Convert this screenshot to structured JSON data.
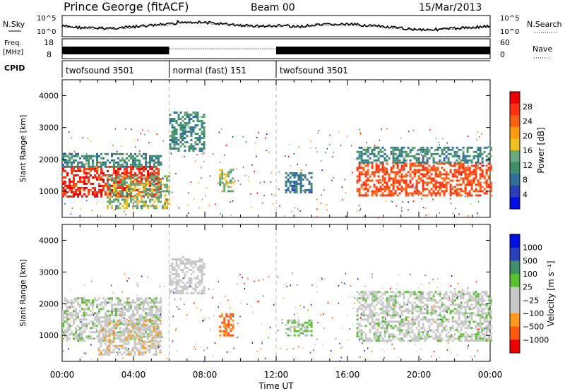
{
  "header": {
    "station": "Prince George (fitACF)",
    "beam": "Beam 00",
    "date": "15/Mar/2013"
  },
  "panels": {
    "nsky_label": "N.Sky",
    "nsearch_label": "N.Search",
    "freq_label_1": "Freq.",
    "freq_label_2": "[MHz]",
    "nave_label": "Nave",
    "cpid_label": "CPID",
    "nsky_ticks": [
      "10^5",
      "10^0"
    ],
    "nsearch_ticks": [
      "10^5",
      "10^0"
    ],
    "freq_ticks": [
      "18",
      "8"
    ],
    "nave_ticks": [
      "60",
      "0"
    ]
  },
  "cpid_segments": [
    {
      "label": "twofsound 3501",
      "start": 0,
      "end": 6
    },
    {
      "label": "normal (fast) 151",
      "start": 6,
      "end": 12
    },
    {
      "label": "twofsound 3501",
      "start": 12,
      "end": 24
    }
  ],
  "colors": {
    "power": [
      "#0010e0",
      "#2a3fb8",
      "#2f6f9a",
      "#3f8f6a",
      "#68a87a",
      "#f0c020",
      "#ff9a10",
      "#ff6010",
      "#ff3010",
      "#ee0000"
    ],
    "velocity": [
      "#ee0000",
      "#ff5a10",
      "#ff9a20",
      "#c8c8c8",
      "#c8c8c8",
      "#58c030",
      "#3f8f6a",
      "#2a3fb8",
      "#0010e0"
    ]
  },
  "chart_data": [
    {
      "type": "heatmap",
      "title": "Power",
      "xlabel": "",
      "ylabel": "Slant Range [km]",
      "xlim": [
        0,
        24
      ],
      "ylim": [
        180,
        4500
      ],
      "x_ticks": [
        "00:00",
        "04:00",
        "08:00",
        "12:00",
        "16:00",
        "20:00",
        "00:00"
      ],
      "y_ticks": [
        "1000",
        "2000",
        "3000",
        "4000"
      ],
      "colorbar": {
        "label": "Power [dB]",
        "ticks": [
          "28",
          "24",
          "20",
          "16",
          "12",
          "8",
          "4"
        ],
        "range": [
          0,
          30
        ]
      },
      "regions": [
        {
          "t": [
            0,
            5.5
          ],
          "range": [
            850,
            1800
          ],
          "value": 26
        },
        {
          "t": [
            0,
            5.5
          ],
          "range": [
            1800,
            2200
          ],
          "value": 10
        },
        {
          "t": [
            2.5,
            6
          ],
          "range": [
            500,
            1500
          ],
          "value": 14
        },
        {
          "t": [
            6,
            8
          ],
          "range": [
            2300,
            3500
          ],
          "value": 10
        },
        {
          "t": [
            8.8,
            9.6
          ],
          "range": [
            1000,
            1700
          ],
          "value": 14
        },
        {
          "t": [
            12.5,
            14
          ],
          "range": [
            1000,
            1600
          ],
          "value": 8
        },
        {
          "t": [
            16.5,
            24
          ],
          "range": [
            850,
            1900
          ],
          "value": 24
        },
        {
          "t": [
            16.5,
            24
          ],
          "range": [
            1900,
            2400
          ],
          "value": 10
        }
      ]
    },
    {
      "type": "heatmap",
      "title": "Velocity",
      "xlabel": "Time UT",
      "ylabel": "Slant Range [km]",
      "xlim": [
        0,
        24
      ],
      "ylim": [
        180,
        4500
      ],
      "x_ticks": [
        "00:00",
        "04:00",
        "08:00",
        "12:00",
        "16:00",
        "20:00",
        "00:00"
      ],
      "y_ticks": [
        "1000",
        "2000",
        "3000",
        "4000"
      ],
      "colorbar": {
        "label": "Velocity [m s⁻¹]",
        "ticks": [
          "1000",
          "500",
          "100",
          "25",
          "−25",
          "−100",
          "−500",
          "−1000"
        ],
        "range": [
          -1250,
          1250
        ]
      },
      "regions": [
        {
          "t": [
            0,
            5.5
          ],
          "range": [
            800,
            2200
          ],
          "value": 0
        },
        {
          "t": [
            2,
            5.5
          ],
          "range": [
            400,
            1500
          ],
          "value": -300
        },
        {
          "t": [
            6,
            8
          ],
          "range": [
            2300,
            3500
          ],
          "value": -150
        },
        {
          "t": [
            8.8,
            9.6
          ],
          "range": [
            1000,
            1700
          ],
          "value": -700
        },
        {
          "t": [
            12.5,
            14
          ],
          "range": [
            1000,
            1500
          ],
          "value": 120
        },
        {
          "t": [
            16.5,
            24
          ],
          "range": [
            800,
            2400
          ],
          "value": 0
        }
      ]
    }
  ]
}
